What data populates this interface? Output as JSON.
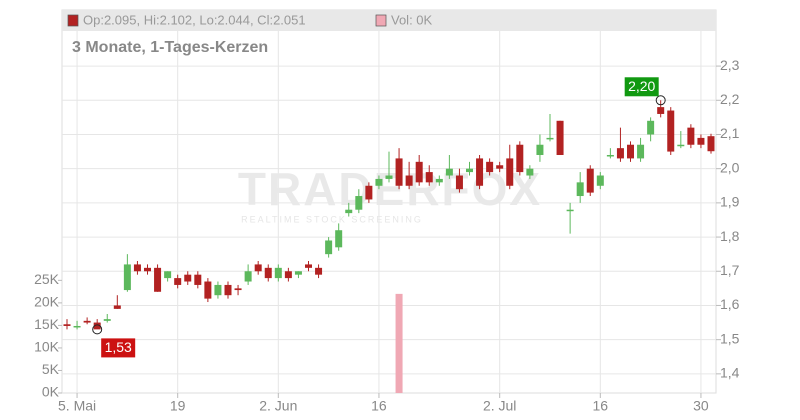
{
  "chart_data": {
    "type": "candlestick",
    "title": "3 Monate, 1-Tages-Kerzen",
    "legend": [
      {
        "label": "Op:2.095, Hi:2.102, Lo:2.044, Cl:2.051",
        "color": "#b22222"
      },
      {
        "label": "Vol: 0K",
        "color": "#f0a8b4"
      }
    ],
    "watermark": "TRADERFOX",
    "watermark_subtitle": "REALTIME STOCK SCREENING",
    "categories": [
      null,
      "5. Mai",
      null,
      null,
      null,
      null,
      null,
      null,
      null,
      null,
      null,
      "19",
      null,
      null,
      null,
      null,
      null,
      null,
      null,
      null,
      null,
      "2. Jun",
      null,
      null,
      null,
      null,
      null,
      null,
      null,
      null,
      null,
      "16",
      null,
      null,
      null,
      null,
      null,
      null,
      null,
      null,
      null,
      null,
      null,
      "2. Jul",
      null,
      null,
      null,
      null,
      null,
      null,
      null,
      null,
      null,
      "16",
      null,
      null,
      null,
      null,
      null,
      null,
      null,
      null,
      null,
      "30",
      null
    ],
    "open": [
      1.545,
      1.54,
      1.555,
      1.55,
      1.555,
      1.6,
      1.645,
      1.72,
      1.71,
      1.71,
      1.68,
      1.68,
      1.69,
      1.69,
      1.67,
      1.63,
      1.66,
      1.65,
      1.67,
      1.72,
      1.71,
      1.68,
      1.7,
      1.69,
      1.72,
      1.71,
      1.75,
      1.77,
      1.87,
      1.88,
      1.95,
      1.95,
      1.97,
      2.03,
      1.98,
      2.02,
      1.99,
      1.96,
      1.98,
      1.98,
      1.99,
      2.03,
      2.02,
      2.01,
      2.03,
      2.07,
      1.98,
      2.04,
      2.09,
      2.14,
      1.88,
      1.92,
      2.0,
      1.95,
      2.04,
      2.06,
      2.07,
      2.03,
      2.1,
      2.18,
      2.17,
      2.07,
      2.12,
      2.09,
      2.095
    ],
    "high": [
      1.56,
      1.555,
      1.565,
      1.56,
      1.575,
      1.63,
      1.75,
      1.73,
      1.72,
      1.72,
      1.7,
      1.69,
      1.7,
      1.7,
      1.68,
      1.67,
      1.67,
      1.66,
      1.72,
      1.73,
      1.72,
      1.72,
      1.71,
      1.7,
      1.73,
      1.72,
      1.8,
      1.84,
      1.9,
      1.94,
      1.96,
      1.98,
      2.05,
      2.06,
      2.02,
      2.04,
      2.01,
      1.98,
      2.04,
      2.0,
      2.02,
      2.04,
      2.03,
      2.02,
      2.07,
      2.08,
      2.01,
      2.1,
      2.16,
      2.14,
      1.9,
      1.99,
      2.01,
      1.99,
      2.06,
      2.12,
      2.08,
      2.09,
      2.15,
      2.2,
      2.18,
      2.11,
      2.13,
      2.1,
      2.102
    ],
    "low": [
      1.53,
      1.53,
      1.545,
      1.534,
      1.55,
      1.59,
      1.64,
      1.69,
      1.69,
      1.64,
      1.67,
      1.65,
      1.66,
      1.65,
      1.61,
      1.62,
      1.62,
      1.63,
      1.66,
      1.69,
      1.67,
      1.67,
      1.67,
      1.68,
      1.7,
      1.68,
      1.74,
      1.76,
      1.86,
      1.87,
      1.9,
      1.94,
      1.96,
      1.94,
      1.94,
      1.95,
      1.95,
      1.95,
      1.97,
      1.93,
      1.98,
      1.94,
      1.98,
      1.99,
      1.94,
      1.98,
      1.97,
      2.02,
      2.08,
      2.04,
      1.81,
      1.9,
      1.92,
      1.94,
      2.03,
      2.02,
      2.02,
      2.02,
      2.08,
      2.15,
      2.04,
      2.06,
      2.06,
      2.06,
      2.044
    ],
    "close": [
      1.54,
      1.54,
      1.55,
      1.53,
      1.56,
      1.59,
      1.72,
      1.7,
      1.7,
      1.64,
      1.7,
      1.66,
      1.67,
      1.66,
      1.62,
      1.66,
      1.63,
      1.645,
      1.7,
      1.7,
      1.68,
      1.71,
      1.68,
      1.7,
      1.71,
      1.69,
      1.79,
      1.82,
      1.88,
      1.92,
      1.91,
      1.97,
      1.98,
      1.95,
      1.95,
      1.96,
      1.96,
      1.97,
      2.0,
      1.94,
      2.0,
      1.95,
      1.99,
      2.0,
      1.95,
      1.99,
      2.0,
      2.07,
      2.09,
      2.04,
      1.88,
      1.96,
      1.93,
      1.98,
      2.04,
      2.03,
      2.03,
      2.07,
      2.14,
      2.16,
      2.05,
      2.07,
      2.07,
      2.07,
      2.051
    ],
    "volume": [
      0,
      0,
      0,
      0,
      0,
      0,
      0,
      0,
      0,
      0,
      0,
      0,
      0,
      0,
      0,
      0,
      0,
      0,
      0,
      0,
      0,
      0,
      0,
      0,
      0,
      0,
      0,
      0,
      0,
      0,
      0,
      0,
      0,
      22000,
      0,
      0,
      0,
      0,
      0,
      0,
      0,
      0,
      0,
      0,
      0,
      0,
      0,
      0,
      0,
      0,
      0,
      0,
      0,
      0,
      0,
      0,
      0,
      0,
      0,
      0,
      0,
      0,
      0,
      0,
      0
    ],
    "up_color": "#5cb85c",
    "down_color": "#b22222",
    "volume_color": "#f0a8b4",
    "ylim": [
      1.344,
      2.464
    ],
    "yticks": [
      {
        "value": 1.4,
        "label": "1,4"
      },
      {
        "value": 1.5,
        "label": "1,5"
      },
      {
        "value": 1.6,
        "label": "1,6"
      },
      {
        "value": 1.7,
        "label": "1,7"
      },
      {
        "value": 1.8,
        "label": "1,8"
      },
      {
        "value": 1.9,
        "label": "1,9"
      },
      {
        "value": 2.0,
        "label": "2,0"
      },
      {
        "value": 2.1,
        "label": "2,1"
      },
      {
        "value": 2.2,
        "label": "2,2"
      },
      {
        "value": 2.3,
        "label": "2,3"
      }
    ],
    "y2lim": [
      0,
      85000
    ],
    "y2ticks": [
      {
        "value": 0,
        "label": "0K"
      },
      {
        "value": 5000,
        "label": "5K"
      },
      {
        "value": 10000,
        "label": "10K"
      },
      {
        "value": 15000,
        "label": "15K"
      },
      {
        "value": 20000,
        "label": "20K"
      },
      {
        "value": 25000,
        "label": "25K"
      }
    ],
    "annotations": [
      {
        "label": "2,20",
        "value": 2.2,
        "index": 59,
        "color": "#119911"
      },
      {
        "label": "1,53",
        "value": 1.53,
        "index": 3,
        "color": "#cc1111"
      }
    ],
    "grid": true
  }
}
